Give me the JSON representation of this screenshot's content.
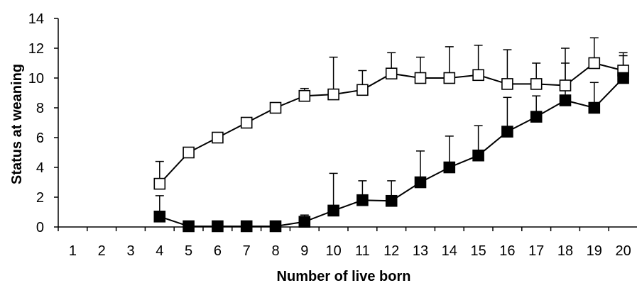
{
  "chart_data": {
    "type": "line",
    "title": "",
    "xlabel": "Number of live born",
    "ylabel": "Status at weaning",
    "categories": [
      "1",
      "2",
      "3",
      "4",
      "5",
      "6",
      "7",
      "8",
      "9",
      "10",
      "11",
      "12",
      "13",
      "14",
      "15",
      "16",
      "17",
      "18",
      "19",
      "20"
    ],
    "ylim": [
      0,
      14
    ],
    "yticks": [
      0,
      2,
      4,
      6,
      8,
      10,
      12,
      14
    ],
    "grid": false,
    "legend": "none",
    "series": [
      {
        "marker": "open-square",
        "color": "#000000",
        "values": [
          null,
          null,
          null,
          2.9,
          5.0,
          6.0,
          7.0,
          8.0,
          8.8,
          8.9,
          9.2,
          10.3,
          10.0,
          10.0,
          10.2,
          9.6,
          9.6,
          9.5,
          11.0,
          10.5
        ],
        "error_upper": [
          null,
          null,
          null,
          4.4,
          null,
          null,
          null,
          null,
          9.3,
          11.4,
          10.5,
          11.7,
          11.4,
          12.1,
          12.2,
          11.9,
          11.0,
          12.0,
          12.7,
          11.7
        ]
      },
      {
        "marker": "filled-square",
        "color": "#000000",
        "values": [
          null,
          null,
          null,
          0.7,
          0.05,
          0.05,
          0.05,
          0.05,
          0.35,
          1.1,
          1.8,
          1.75,
          3.0,
          4.0,
          4.8,
          6.4,
          7.4,
          8.5,
          8.0,
          10.0
        ],
        "error_upper": [
          null,
          null,
          null,
          2.1,
          null,
          null,
          null,
          null,
          0.8,
          3.6,
          3.1,
          3.1,
          5.1,
          6.1,
          6.8,
          8.7,
          8.8,
          11.0,
          9.7,
          11.5
        ]
      }
    ]
  }
}
